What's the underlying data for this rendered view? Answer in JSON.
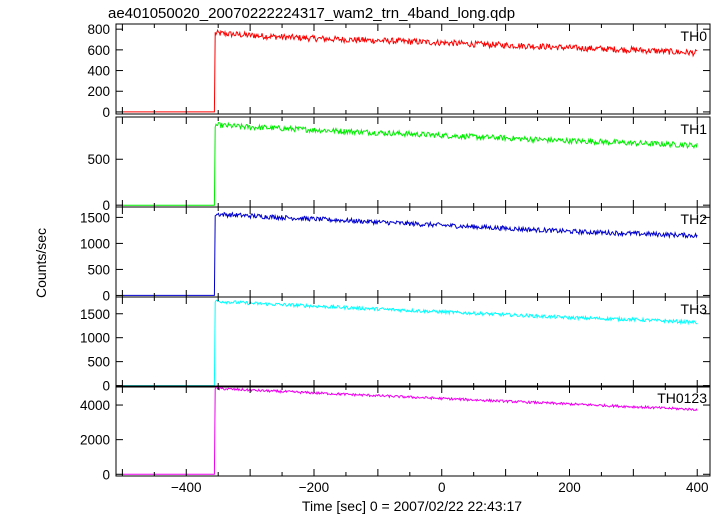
{
  "title": "ae401050020_20070222224317_wam2_trn_4band_long.qdp",
  "xlabel": "Time [sec] 0 = 2007/02/22 22:43:17",
  "ylabel": "Counts/sec",
  "chart_data": {
    "type": "line",
    "title": "ae401050020_20070222224317_wam2_trn_4band_long.qdp",
    "xlabel": "Time [sec] 0 = 2007/02/22 22:43:17",
    "ylabel": "Counts/sec",
    "xlim": [
      -510,
      420
    ],
    "x_ticks": [
      -400,
      -200,
      0,
      200,
      400
    ],
    "x_tick_labels": [
      "−400",
      "−200",
      "0",
      "200",
      "400"
    ],
    "grid": false,
    "legend": "panel labels top-right",
    "series": [
      {
        "name": "TH0",
        "color": "#ff0000",
        "ylim": [
          -20,
          850
        ],
        "y_ticks": [
          0,
          200,
          400,
          600,
          800
        ],
        "y_tick_labels": [
          "0",
          "200",
          "400",
          "600",
          "800"
        ],
        "x": [
          -500,
          -356,
          -355,
          -350,
          -300,
          -250,
          -200,
          -150,
          -100,
          -50,
          0,
          50,
          100,
          150,
          200,
          250,
          300,
          350,
          400
        ],
        "values": [
          0,
          0,
          760,
          760,
          740,
          725,
          710,
          700,
          690,
          680,
          670,
          655,
          645,
          635,
          620,
          610,
          600,
          585,
          570
        ],
        "noise": 30
      },
      {
        "name": "TH1",
        "color": "#00ee00",
        "ylim": [
          -20,
          960
        ],
        "y_ticks": [
          0,
          500
        ],
        "y_tick_labels": [
          "0",
          "500"
        ],
        "x": [
          -500,
          -356,
          -355,
          -350,
          -300,
          -250,
          -200,
          -150,
          -100,
          -50,
          0,
          50,
          100,
          150,
          200,
          250,
          300,
          350,
          400
        ],
        "values": [
          0,
          0,
          870,
          870,
          850,
          835,
          820,
          805,
          790,
          775,
          760,
          745,
          730,
          715,
          700,
          690,
          675,
          665,
          650
        ],
        "noise": 30
      },
      {
        "name": "TH2",
        "color": "#0000cc",
        "ylim": [
          -30,
          1700
        ],
        "y_ticks": [
          0,
          500,
          1000,
          1500
        ],
        "y_tick_labels": [
          "0",
          "500",
          "1000",
          "1500"
        ],
        "x": [
          -500,
          -356,
          -355,
          -350,
          -300,
          -250,
          -200,
          -150,
          -100,
          -50,
          0,
          50,
          100,
          150,
          200,
          250,
          300,
          350,
          400
        ],
        "values": [
          0,
          0,
          1560,
          1560,
          1530,
          1500,
          1470,
          1440,
          1410,
          1380,
          1350,
          1320,
          1290,
          1260,
          1230,
          1210,
          1190,
          1170,
          1150
        ],
        "noise": 45
      },
      {
        "name": "TH3",
        "color": "#00ffff",
        "ylim": [
          -30,
          1850
        ],
        "y_ticks": [
          0,
          500,
          1000,
          1500
        ],
        "y_tick_labels": [
          "0",
          "500",
          "1000",
          "1500"
        ],
        "x": [
          -500,
          -356,
          -355,
          -350,
          -300,
          -250,
          -200,
          -150,
          -100,
          -50,
          0,
          50,
          100,
          150,
          200,
          250,
          300,
          350,
          400
        ],
        "values": [
          0,
          0,
          1760,
          1760,
          1720,
          1690,
          1660,
          1630,
          1600,
          1570,
          1540,
          1510,
          1480,
          1450,
          1420,
          1400,
          1380,
          1350,
          1320
        ],
        "noise": 35
      },
      {
        "name": "TH0123",
        "color": "#ee00ee",
        "ylim": [
          -100,
          5100
        ],
        "y_ticks": [
          0,
          2000,
          4000
        ],
        "y_tick_labels": [
          "0",
          "2000",
          "4000"
        ],
        "x": [
          -500,
          -356,
          -355,
          -350,
          -300,
          -250,
          -200,
          -150,
          -100,
          -50,
          0,
          50,
          100,
          150,
          200,
          250,
          300,
          350,
          400
        ],
        "values": [
          0,
          0,
          4950,
          4950,
          4860,
          4780,
          4700,
          4620,
          4540,
          4460,
          4380,
          4300,
          4220,
          4140,
          4060,
          3980,
          3900,
          3820,
          3740
        ],
        "noise": 70
      }
    ]
  }
}
